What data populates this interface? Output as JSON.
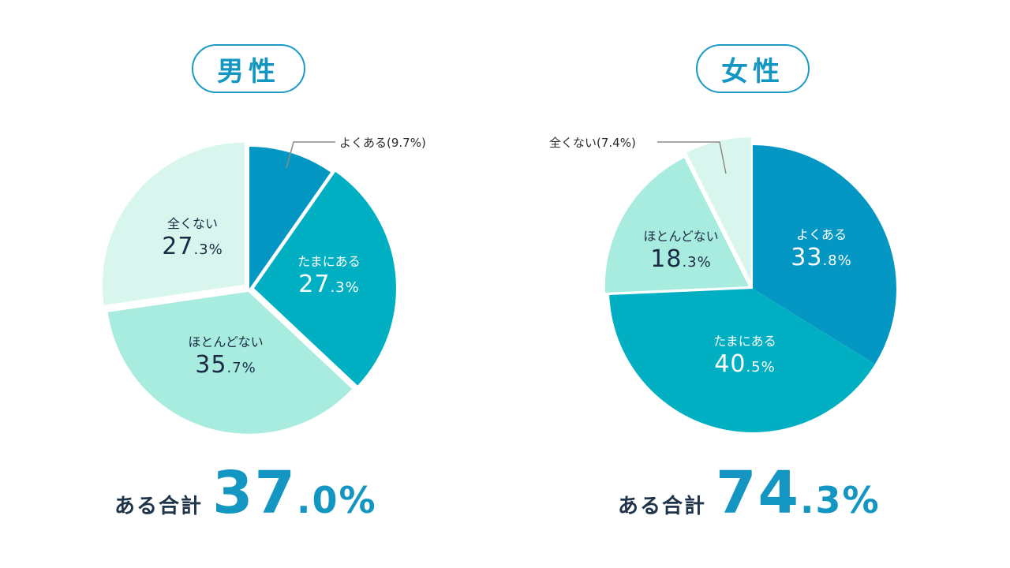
{
  "chart_data": [
    {
      "type": "pie",
      "title": "男性",
      "slices": [
        {
          "label": "よくある",
          "value": 9.7,
          "color": "#0597c3"
        },
        {
          "label": "たまにある",
          "value": 27.3,
          "color": "#00b0c2"
        },
        {
          "label": "ほとんどない",
          "value": 35.7,
          "color": "#a8ece0"
        },
        {
          "label": "全くない",
          "value": 27.3,
          "color": "#d8f6ee"
        }
      ],
      "labels": {
        "yokuaru": "よくある(9.7%)",
        "tamaniaru": {
          "label": "たまにある",
          "int": "27",
          "dec": ".3%"
        },
        "hotondonai": {
          "label": "ほとんどない",
          "int": "35",
          "dec": ".7%"
        },
        "mattakunai": {
          "label": "全くない",
          "int": "27",
          "dec": ".3%"
        }
      },
      "total_label": "ある合計",
      "total_int": "37",
      "total_dec": ".0%"
    },
    {
      "type": "pie",
      "title": "女性",
      "slices": [
        {
          "label": "よくある",
          "value": 33.8,
          "color": "#0597c3"
        },
        {
          "label": "たまにある",
          "value": 40.5,
          "color": "#00b0c2"
        },
        {
          "label": "ほとんどない",
          "value": 18.3,
          "color": "#a8ece0"
        },
        {
          "label": "全くない",
          "value": 7.4,
          "color": "#d8f6ee"
        }
      ],
      "labels": {
        "yokuaru": {
          "label": "よくある",
          "int": "33",
          "dec": ".8%"
        },
        "tamaniaru": {
          "label": "たまにある",
          "int": "40",
          "dec": ".5%"
        },
        "hotondonai": {
          "label": "ほとんどない",
          "int": "18",
          "dec": ".3%"
        },
        "mattakunai": "全くない(7.4%)"
      },
      "total_label": "ある合計",
      "total_int": "74",
      "total_dec": ".3%"
    }
  ]
}
